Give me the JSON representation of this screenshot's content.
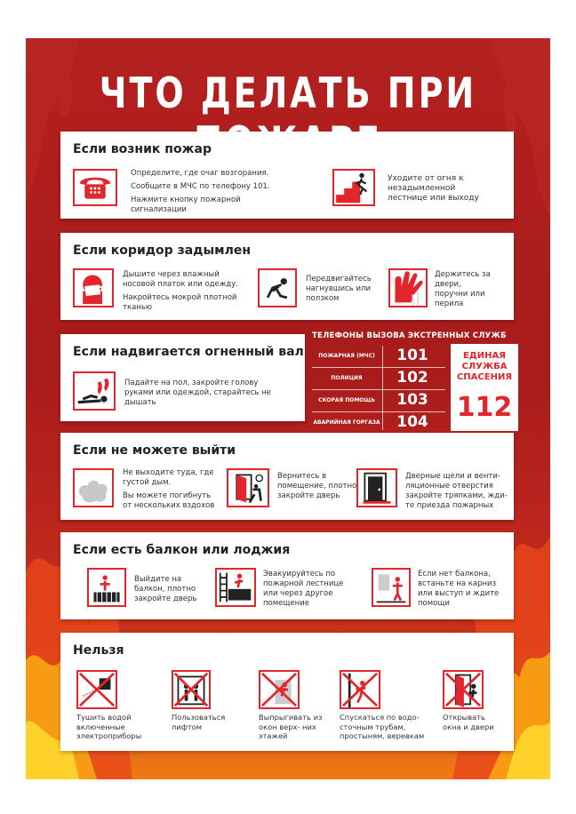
{
  "title": "ЧТО ДЕЛАТЬ ПРИ ПОЖАРЕ",
  "colors": {
    "accent": "#e3262b",
    "background": "#a81c1c",
    "flame": "#f07a12"
  },
  "section1": {
    "heading": "Если возник пожар",
    "icon1": "telephone-icon",
    "text1": [
      "Определите, где очаг возгорания.",
      "Сообщите в МЧС по телефону 101.",
      "Нажмите кнопку пожарной сигнализации"
    ],
    "icon2": "exit-stairs-icon",
    "text2": "Уходите от огня к незадымленной лестнице или выходу"
  },
  "section2": {
    "heading": "Если коридор задымлен",
    "icon1": "cloth-mouth-icon",
    "text1": [
      "Дышите через влажный носовой платок или одежду.",
      "Накройтесь мокрой плотной тканью"
    ],
    "icon2": "crawl-icon",
    "text2": "Передвигайтесь нагнувшись или ползком",
    "icon3": "hand-railing-icon",
    "text3": "Держитесь за двери, поручни или перила"
  },
  "section3": {
    "heading": "Если надвигается огненный вал",
    "icon1": "lie-down-icon",
    "text1": "Падайте на пол, закройте голову руками или одеждой, старайтесь не дышать"
  },
  "phones": {
    "title": "ТЕЛЕФОНЫ ВЫЗОВА ЭКСТРЕННЫХ СЛУЖБ",
    "rows": [
      {
        "name": "ПОЖАРНАЯ (МЧС)",
        "number": "101"
      },
      {
        "name": "ПОЛИЦИЯ",
        "number": "102"
      },
      {
        "name": "СКОРАЯ ПОМОЩЬ",
        "number": "103"
      },
      {
        "name": "АВАРИЙНАЯ ГОРГАЗА",
        "number": "104"
      }
    ],
    "rescue_label": "ЕДИНАЯ СЛУЖБА СПАСЕНИЯ",
    "rescue_number": "112"
  },
  "section4": {
    "heading": "Если не можете выйти",
    "icon1": "smoke-icon",
    "text1": [
      "Не выходите туда, где густой дым.",
      "Вы можете погибнуть от нескольких вздохов"
    ],
    "icon2": "close-door-icon",
    "text2": "Вернитесь в помещение, плотно закройте дверь",
    "icon3": "seal-door-icon",
    "text3": "Дверные щели и венти- ляционные отверстия закройте тряпками, жди- те приезда пожарных"
  },
  "section5": {
    "heading": "Если есть балкон или лоджия",
    "icon1": "balcony-icon",
    "text1": "Выйдите на балкон, плотно закройте дверь",
    "icon2": "fire-escape-icon",
    "text2": "Эвакуируйтесь по пожарной лестнице или через другое помещение",
    "icon3": "ledge-icon",
    "text3": "Если нет балкона, встаньте на карниз или выступ и ждите помощи"
  },
  "section6": {
    "heading": "Нельзя",
    "items": [
      {
        "icon": "no-water-appliance-icon",
        "text": "Тушить водой включенные электроприборы"
      },
      {
        "icon": "no-elevator-icon",
        "text": "Пользоваться лифтом"
      },
      {
        "icon": "no-jump-window-icon",
        "text": "Выпрыгивать из окон верх- них этажей"
      },
      {
        "icon": "no-climb-pipe-icon",
        "text": "Спускаться по водо- сточным трубам, простыням, веревкам"
      },
      {
        "icon": "no-open-door-icon",
        "text": "Открывать окна и двери"
      }
    ]
  }
}
